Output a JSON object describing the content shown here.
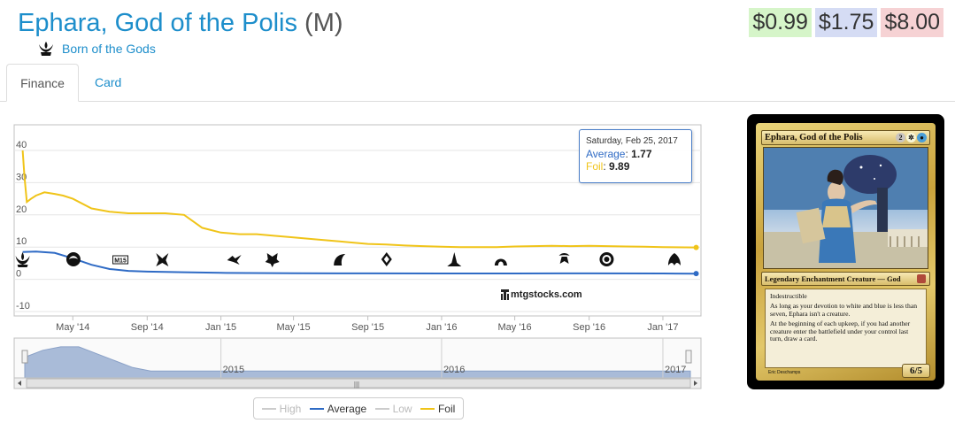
{
  "header": {
    "card_name": "Ephara, God of the Polis",
    "rarity": "(M)",
    "set_name": "Born of the Gods",
    "set_icon": "born-of-the-gods-set-icon"
  },
  "prices": {
    "low": "$0.99",
    "mid": "$1.75",
    "high": "$8.00",
    "low_color": "#d6f5c9",
    "mid_color": "#d5dcf4",
    "high_color": "#f6d2d4"
  },
  "tabs": [
    {
      "label": "Finance",
      "active": true
    },
    {
      "label": "Card",
      "active": false
    }
  ],
  "chart_data": {
    "type": "line",
    "title": "",
    "xlabel": "",
    "ylabel": "",
    "ylim": [
      -10,
      40
    ],
    "y_ticks": [
      "40",
      "30",
      "20",
      "10",
      "0",
      "-10"
    ],
    "x_ticks": [
      "May '14",
      "Sep '14",
      "Jan '15",
      "May '15",
      "Sep '15",
      "Jan '16",
      "May '16",
      "Sep '16",
      "Jan '17"
    ],
    "x_range": [
      "2014-02",
      "2017-03"
    ],
    "grid": true,
    "series": [
      {
        "name": "Foil",
        "color": "#f0c419",
        "x": [
          "2014-02-07",
          "2014-02-10",
          "2014-02-14",
          "2014-02-21",
          "2014-03-01",
          "2014-03-15",
          "2014-04-01",
          "2014-04-15",
          "2014-05-01",
          "2014-06-01",
          "2014-07-01",
          "2014-08-01",
          "2014-09-01",
          "2014-10-01",
          "2014-11-01",
          "2014-12-01",
          "2015-01-01",
          "2015-02-01",
          "2015-03-01",
          "2015-04-01",
          "2015-05-01",
          "2015-06-01",
          "2015-07-01",
          "2015-08-01",
          "2015-09-01",
          "2015-10-01",
          "2015-11-01",
          "2015-12-01",
          "2016-01-01",
          "2016-02-01",
          "2016-03-01",
          "2016-04-01",
          "2016-05-01",
          "2016-06-01",
          "2016-07-01",
          "2016-08-01",
          "2016-09-01",
          "2016-10-01",
          "2016-11-01",
          "2016-12-01",
          "2017-01-01",
          "2017-02-25"
        ],
        "values": [
          40,
          32,
          24,
          25,
          26,
          27,
          26.5,
          26,
          25,
          22,
          21,
          20.5,
          20.5,
          20.5,
          20,
          16,
          14.5,
          14,
          14,
          13.5,
          13,
          12.5,
          12,
          11.5,
          11,
          10.8,
          10.5,
          10.3,
          10.1,
          10,
          10,
          10,
          10.2,
          10.3,
          10.4,
          10.3,
          10.4,
          10.3,
          10.2,
          10.1,
          10,
          9.89
        ]
      },
      {
        "name": "Average",
        "color": "#2f6bc5",
        "x": [
          "2014-02-07",
          "2014-03-01",
          "2014-04-01",
          "2014-05-01",
          "2014-06-01",
          "2014-07-01",
          "2014-08-01",
          "2014-09-01",
          "2014-11-01",
          "2015-01-01",
          "2015-05-01",
          "2015-09-01",
          "2016-01-01",
          "2016-05-01",
          "2016-09-01",
          "2017-01-01",
          "2017-02-25"
        ],
        "values": [
          8.5,
          8.6,
          8.2,
          6.5,
          4.5,
          3.2,
          2.6,
          2.4,
          2.2,
          2.0,
          1.9,
          1.85,
          1.8,
          1.8,
          1.85,
          1.8,
          1.77
        ]
      },
      {
        "name": "High",
        "color": "#bbbbbb",
        "visible": false,
        "values": []
      },
      {
        "name": "Low",
        "color": "#bbbbbb",
        "visible": false,
        "values": []
      }
    ],
    "set_release_markers": [
      "Born of the Gods",
      "Journey into Nyx",
      "M15",
      "Khans of Tarkir",
      "Fate Reforged",
      "Dragons of Tarkir",
      "Magic Origins",
      "Battle for Zendikar",
      "Oath of the Gatewatch",
      "Shadows over Innistrad",
      "Eldritch Moon",
      "Kaladesh",
      "Aether Revolt"
    ],
    "tooltip": {
      "date": "Saturday, Feb 25, 2017",
      "average_label": "Average",
      "average_value": "1.77",
      "foil_label": "Foil",
      "foil_value": "9.89"
    },
    "navigator": {
      "labels": [
        "2015",
        "2016",
        "2017"
      ],
      "values": [
        6,
        8,
        9,
        9,
        7,
        5,
        3,
        2,
        2,
        2,
        2,
        2,
        2,
        2,
        2,
        2,
        2,
        2,
        2,
        2,
        2,
        2,
        2,
        2,
        2,
        2,
        2,
        2,
        2,
        2,
        2,
        2,
        2,
        2,
        2,
        2,
        2,
        2
      ]
    },
    "legend": [
      {
        "name": "High",
        "enabled": false
      },
      {
        "name": "Average",
        "enabled": true
      },
      {
        "name": "Low",
        "enabled": false
      },
      {
        "name": "Foil",
        "enabled": true
      }
    ]
  },
  "watermark": "mtgstocks.com",
  "card_image": {
    "name": "Ephara, God of the Polis",
    "mana_cost": [
      "2",
      "W",
      "U"
    ],
    "type_line": "Legendary Enchantment Creature — God",
    "rules_text": [
      "Indestructible",
      "As long as your devotion to white and blue is less than seven, Ephara isn't a creature.",
      "At the beginning of each upkeep, if you had another creature enter the battlefield under your control last turn, draw a card."
    ],
    "power_toughness": "6/5",
    "artist": "Eric Deschamps"
  }
}
